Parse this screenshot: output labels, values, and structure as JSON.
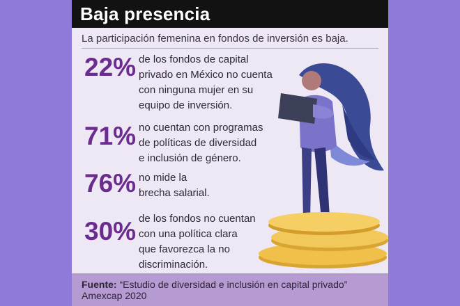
{
  "header": {
    "title": "Baja presencia"
  },
  "subtitle": "La participación femenina en fondos de inversión es baja.",
  "stats": [
    {
      "percent": "22%",
      "lines": [
        "de los fondos de capital",
        "privado en México no cuenta",
        "con ninguna mujer en su",
        "equipo de inversión."
      ]
    },
    {
      "percent": "71%",
      "lines": [
        "no cuentan con programas",
        "de políticas de diversidad",
        "e inclusión de género."
      ]
    },
    {
      "percent": "76%",
      "lines": [
        "no mide la",
        "brecha salarial."
      ]
    },
    {
      "percent": "30%",
      "lines": [
        "de los fondos no cuentan",
        "con una política clara",
        "que favorezca la no",
        "discriminación."
      ]
    }
  ],
  "footer": {
    "source_label": "Fuente:",
    "source_text": "“Estudio de diversidad e inclusión en capital privado”",
    "source_org": "Amexcap 2020"
  },
  "colors": {
    "accent": "#6a2c8f",
    "background": "#8f7ad9",
    "card": "#ede8f3",
    "footer": "#b59bd2"
  },
  "illustration": "woman-holding-laptop-on-gold-coins"
}
